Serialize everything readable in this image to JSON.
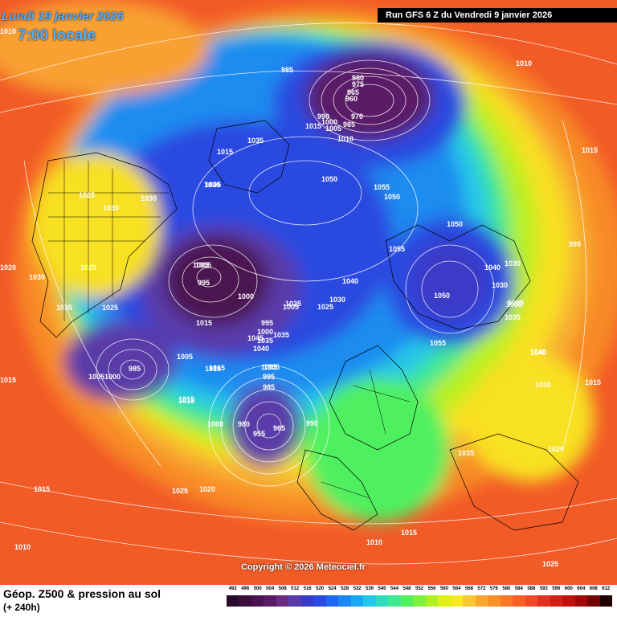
{
  "header": {
    "date": "Lundi 19 janvier 2026",
    "time": "7:00 locale",
    "run": "Run GFS 6 Z du Vendredi 9 janvier 2026"
  },
  "copyright": "Copyright © 2026 Meteociel.fr",
  "footer": {
    "title": "Géop. Z500 & pression au sol",
    "subtitle": "(+ 240h)"
  },
  "scale": {
    "values": [
      "492",
      "496",
      "500",
      "504",
      "508",
      "512",
      "516",
      "520",
      "524",
      "528",
      "532",
      "536",
      "540",
      "544",
      "548",
      "552",
      "556",
      "560",
      "564",
      "568",
      "572",
      "576",
      "580",
      "584",
      "588",
      "592",
      "596",
      "600",
      "604",
      "608",
      "612"
    ],
    "colors": [
      "#2a0a2a",
      "#3c0e3c",
      "#4b1250",
      "#5a1a66",
      "#6a2a80",
      "#5a3aa8",
      "#3a3ac8",
      "#2a4ae0",
      "#1e66f0",
      "#1a88f0",
      "#1aa8f0",
      "#22c8e8",
      "#30dcc0",
      "#40e890",
      "#50f060",
      "#80f040",
      "#b0f020",
      "#e0f010",
      "#f8e820",
      "#f8c830",
      "#f8a830",
      "#f89028",
      "#f87828",
      "#f86028",
      "#f04828",
      "#e03020",
      "#d02018",
      "#c01010",
      "#a00808",
      "#700404",
      "#200000"
    ]
  },
  "pressure_labels": [
    {
      "text": "1010"
    },
    {
      "text": "985"
    },
    {
      "text": "980"
    },
    {
      "text": "975"
    },
    {
      "text": "965"
    },
    {
      "text": "960"
    },
    {
      "text": "970"
    },
    {
      "text": "985"
    },
    {
      "text": "990"
    },
    {
      "text": "1000"
    },
    {
      "text": "1005"
    },
    {
      "text": "1015"
    },
    {
      "text": "1010"
    },
    {
      "text": "1035"
    },
    {
      "text": "1015"
    },
    {
      "text": "1045"
    },
    {
      "text": "1050"
    },
    {
      "text": "1055"
    },
    {
      "text": "1050"
    },
    {
      "text": "1010"
    },
    {
      "text": "1005"
    },
    {
      "text": "1005"
    },
    {
      "text": "1015"
    },
    {
      "text": "995"
    },
    {
      "text": "1025"
    },
    {
      "text": "1030"
    },
    {
      "text": "1030"
    },
    {
      "text": "1020"
    },
    {
      "text": "1030"
    },
    {
      "text": "1025"
    },
    {
      "text": "1035"
    },
    {
      "text": "1025"
    },
    {
      "text": "1005"
    },
    {
      "text": "1000"
    },
    {
      "text": "995"
    },
    {
      "text": "1000"
    },
    {
      "text": "1005"
    },
    {
      "text": "1015"
    },
    {
      "text": "1005"
    },
    {
      "text": "1025"
    },
    {
      "text": "1025"
    },
    {
      "text": "1030"
    },
    {
      "text": "1035"
    },
    {
      "text": "1045"
    },
    {
      "text": "1040"
    },
    {
      "text": "1035"
    },
    {
      "text": "1040"
    },
    {
      "text": "1055"
    },
    {
      "text": "1050"
    },
    {
      "text": "1040"
    },
    {
      "text": "1030"
    },
    {
      "text": "1030"
    },
    {
      "text": "1050"
    },
    {
      "text": "1030"
    },
    {
      "text": "1035"
    },
    {
      "text": "1035"
    },
    {
      "text": "1055"
    },
    {
      "text": "1040"
    },
    {
      "text": "1030"
    },
    {
      "text": "1015"
    },
    {
      "text": "1015"
    },
    {
      "text": "985"
    },
    {
      "text": "1005"
    },
    {
      "text": "1000"
    },
    {
      "text": "1010"
    },
    {
      "text": "1005"
    },
    {
      "text": "995"
    },
    {
      "text": "985"
    },
    {
      "text": "1015"
    },
    {
      "text": "1000"
    },
    {
      "text": "980"
    },
    {
      "text": "965"
    },
    {
      "text": "955"
    },
    {
      "text": "990"
    },
    {
      "text": "1035"
    },
    {
      "text": "1020"
    },
    {
      "text": "1015"
    },
    {
      "text": "1025"
    },
    {
      "text": "1020"
    },
    {
      "text": "1015"
    },
    {
      "text": "1010"
    },
    {
      "text": "1010"
    },
    {
      "text": "1015"
    },
    {
      "text": "1025"
    },
    {
      "text": "1010"
    },
    {
      "text": "995"
    },
    {
      "text": "1040"
    },
    {
      "text": "1015"
    }
  ]
}
